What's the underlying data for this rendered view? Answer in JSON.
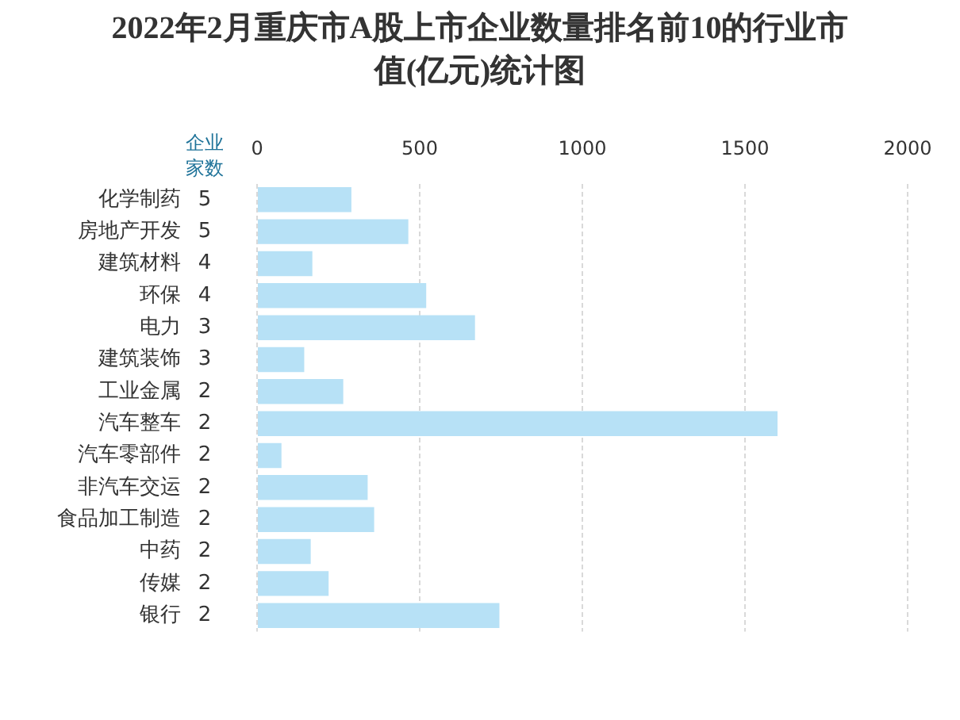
{
  "chart_data": {
    "type": "bar",
    "orientation": "horizontal",
    "title": "2022年2月重庆市A股上市企业数量排名前10的行业市值(亿元)统计图",
    "categories": [
      "化学制药",
      "房地产开发",
      "建筑材料",
      "环保",
      "电力",
      "建筑装饰",
      "工业金属",
      "汽车整车",
      "汽车零部件",
      "非汽车交运",
      "食品加工制造",
      "中药",
      "传媒",
      "银行"
    ],
    "values": [
      290,
      465,
      170,
      520,
      670,
      145,
      265,
      1600,
      75,
      340,
      360,
      165,
      220,
      745
    ],
    "color": "#b7e1f6",
    "xlim": [
      0,
      2000
    ],
    "xticks": [
      0,
      500,
      1000,
      1500,
      2000
    ],
    "grid": "x",
    "annotations": [
      "企业家数",
      "5",
      "5",
      "4",
      "4",
      "3",
      "3",
      "2",
      "2",
      "2",
      "2",
      "2",
      "2",
      "2",
      "2"
    ]
  }
}
